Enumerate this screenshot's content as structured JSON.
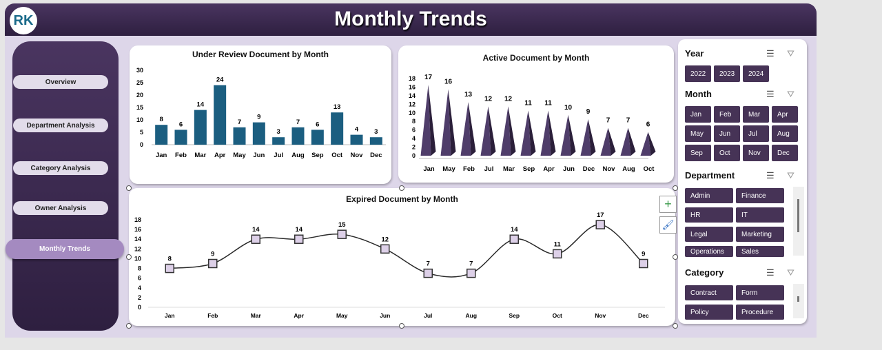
{
  "header": {
    "title": "Monthly Trends",
    "logo_text": "RK"
  },
  "nav": [
    {
      "label": "Overview"
    },
    {
      "label": "Department Analysis"
    },
    {
      "label": "Category Analysis"
    },
    {
      "label": "Owner Analysis"
    },
    {
      "label": "Monthly Trends",
      "active": true
    }
  ],
  "slicers": {
    "year": {
      "title": "Year",
      "items": [
        "2022",
        "2023",
        "2024"
      ]
    },
    "month": {
      "title": "Month",
      "items": [
        "Jan",
        "Feb",
        "Mar",
        "Apr",
        "May",
        "Jun",
        "Jul",
        "Aug",
        "Sep",
        "Oct",
        "Nov",
        "Dec"
      ]
    },
    "department": {
      "title": "Department",
      "items": [
        "Admin",
        "Finance",
        "HR",
        "IT",
        "Legal",
        "Marketing",
        "Operations",
        "Sales"
      ]
    },
    "category": {
      "title": "Category",
      "items": [
        "Contract",
        "Form",
        "Policy",
        "Procedure"
      ]
    }
  },
  "colors": {
    "header": "#3b2a4f",
    "bar": "#1b5e80",
    "cone": "#4b3a63",
    "marker": "#ddd0e8",
    "active_nav": "#a48ac0"
  },
  "chart_data": [
    {
      "type": "bar",
      "title": "Under Review Document by Month",
      "categories": [
        "Jan",
        "Feb",
        "Mar",
        "Apr",
        "May",
        "Jun",
        "Jul",
        "Aug",
        "Sep",
        "Oct",
        "Nov",
        "Dec"
      ],
      "values": [
        8,
        6,
        14,
        24,
        7,
        9,
        3,
        7,
        6,
        13,
        4,
        3
      ],
      "ylim": [
        0,
        30
      ],
      "yticks": [
        0,
        5,
        10,
        15,
        20,
        25,
        30
      ],
      "grid": false
    },
    {
      "type": "bar",
      "subtype": "3d-cone",
      "title": "Active Document by Month",
      "categories": [
        "Jan",
        "May",
        "Feb",
        "Jul",
        "Mar",
        "Sep",
        "Apr",
        "Jun",
        "Dec",
        "Nov",
        "Aug",
        "Oct"
      ],
      "values": [
        17,
        16,
        13,
        12,
        12,
        11,
        11,
        10,
        9,
        7,
        7,
        6
      ],
      "ylim": [
        0,
        18
      ],
      "yticks": [
        0,
        2,
        4,
        6,
        8,
        10,
        12,
        14,
        16,
        18
      ],
      "grid": false
    },
    {
      "type": "line",
      "title": "Expired Document by Month",
      "categories": [
        "Jan",
        "Feb",
        "Mar",
        "Apr",
        "May",
        "Jun",
        "Jul",
        "Aug",
        "Sep",
        "Oct",
        "Nov",
        "Dec"
      ],
      "values": [
        8,
        9,
        14,
        14,
        15,
        12,
        7,
        7,
        14,
        11,
        17,
        9
      ],
      "ylim": [
        0,
        18
      ],
      "yticks": [
        0,
        2,
        4,
        6,
        8,
        10,
        12,
        14,
        16,
        18
      ],
      "smooth": true,
      "markers": "square",
      "grid": false
    }
  ]
}
